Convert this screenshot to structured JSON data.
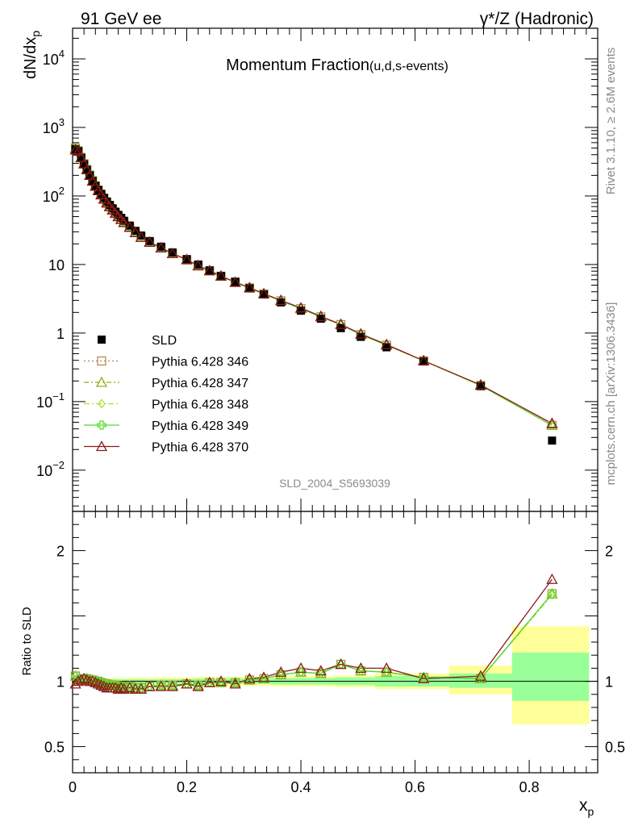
{
  "header": {
    "left": "91 GeV ee",
    "right": "γ*/Z (Hadronic)",
    "title_main": "Momentum Fraction",
    "title_sub": "(u,d,s-events)"
  },
  "side_text": {
    "rivet": "Rivet 3.1.10, ≥ 2.6M events",
    "mcplots": "mcplots.cern.ch [arXiv:1306.3436]"
  },
  "analysis_id": "SLD_2004_S5693039",
  "chart_data": [
    {
      "type": "scatter",
      "panel": "main",
      "ylabel": "dN/dx_p",
      "yscale": "log",
      "xlim": [
        0,
        0.92
      ],
      "ylim": [
        0.0025,
        28000
      ],
      "y_ticks": [
        {
          "v": 0.01,
          "base": "10",
          "exp": "−2"
        },
        {
          "v": 0.1,
          "base": "10",
          "exp": "−1"
        },
        {
          "v": 1,
          "base": "1",
          "exp": ""
        },
        {
          "v": 10,
          "base": "10",
          "exp": ""
        },
        {
          "v": 100,
          "base": "10",
          "exp": "2"
        },
        {
          "v": 1000,
          "base": "10",
          "exp": "3"
        },
        {
          "v": 10000,
          "base": "10",
          "exp": "4"
        }
      ],
      "x": [
        0.005,
        0.01,
        0.015,
        0.02,
        0.025,
        0.03,
        0.035,
        0.04,
        0.045,
        0.05,
        0.055,
        0.06,
        0.065,
        0.07,
        0.075,
        0.08,
        0.085,
        0.09,
        0.1,
        0.11,
        0.12,
        0.135,
        0.155,
        0.175,
        0.2,
        0.22,
        0.24,
        0.26,
        0.285,
        0.31,
        0.335,
        0.365,
        0.4,
        0.435,
        0.47,
        0.505,
        0.55,
        0.615,
        0.715,
        0.84
      ],
      "series": [
        {
          "name": "SLD",
          "marker": "square",
          "color": "#000000",
          "values": [
            480,
            450,
            360,
            290,
            240,
            200,
            165,
            140,
            122,
            107,
            94,
            83,
            74,
            66,
            59,
            53,
            48,
            43.5,
            37,
            31,
            26.5,
            22,
            18.2,
            15,
            12,
            10,
            8.2,
            6.8,
            5.6,
            4.5,
            3.65,
            2.8,
            2.12,
            1.62,
            1.18,
            0.88,
            0.62,
            0.385,
            0.168,
            0.027
          ]
        },
        {
          "name": "Pythia 6.428 346",
          "marker": "open-square",
          "color": "#b5834a",
          "dash": "2,3",
          "values": [
            500,
            455,
            365,
            295,
            244,
            201,
            167,
            141,
            122,
            106,
            92,
            81,
            72,
            64,
            57,
            51,
            46,
            41.5,
            35.5,
            29.5,
            25.2,
            21.2,
            17.6,
            14.5,
            11.7,
            9.7,
            8.1,
            6.75,
            5.55,
            4.55,
            3.72,
            2.95,
            2.27,
            1.72,
            1.33,
            0.95,
            0.665,
            0.395,
            0.172,
            0.045
          ]
        },
        {
          "name": "Pythia 6.428 347",
          "marker": "open-triangle",
          "color": "#9aaa18",
          "dash": "6,3,2,3",
          "values": [
            500,
            455,
            365,
            295,
            244,
            201,
            167,
            141,
            122,
            106,
            92,
            81,
            72,
            64,
            57,
            51,
            46,
            41.5,
            35.5,
            29.5,
            25.2,
            21.2,
            17.6,
            14.5,
            11.7,
            9.7,
            8.1,
            6.75,
            5.55,
            4.55,
            3.72,
            2.95,
            2.27,
            1.72,
            1.33,
            0.95,
            0.665,
            0.395,
            0.172,
            0.045
          ]
        },
        {
          "name": "Pythia 6.428 348",
          "marker": "open-diamond",
          "color": "#a8e030",
          "dash": "7,3,2,3",
          "values": [
            500,
            455,
            365,
            295,
            244,
            201,
            167,
            141,
            122,
            106,
            92,
            81,
            72,
            64,
            57,
            51,
            46,
            41.5,
            35.5,
            29.5,
            25.2,
            21.2,
            17.6,
            14.5,
            11.7,
            9.7,
            8.1,
            6.75,
            5.55,
            4.55,
            3.72,
            2.95,
            2.27,
            1.72,
            1.33,
            0.95,
            0.665,
            0.395,
            0.172,
            0.045
          ]
        },
        {
          "name": "Pythia 6.428 349",
          "marker": "cross",
          "color": "#50d830",
          "dash": "",
          "values": [
            500,
            455,
            365,
            295,
            244,
            201,
            167,
            141,
            122,
            106,
            92,
            81,
            72,
            64,
            57,
            51,
            46,
            41.5,
            35.5,
            29.5,
            25.2,
            21.2,
            17.6,
            14.5,
            11.7,
            9.7,
            8.1,
            6.75,
            5.55,
            4.55,
            3.72,
            2.95,
            2.27,
            1.72,
            1.33,
            0.95,
            0.665,
            0.395,
            0.172,
            0.045
          ]
        },
        {
          "name": "Pythia 6.428 370",
          "marker": "open-triangle",
          "color": "#8b1a1a",
          "dash": "",
          "values": [
            470,
            450,
            365,
            295,
            243,
            200,
            165,
            139,
            120,
            104,
            90,
            79,
            70,
            62.5,
            56,
            50,
            45.5,
            41,
            35,
            29.2,
            25,
            21.2,
            17.5,
            14.5,
            11.8,
            9.6,
            8.15,
            6.8,
            5.5,
            4.6,
            3.75,
            3,
            2.33,
            1.75,
            1.34,
            0.97,
            0.68,
            0.395,
            0.175,
            0.048
          ]
        }
      ]
    },
    {
      "type": "scatter",
      "panel": "ratio",
      "xlabel": "x_p",
      "ylabel": "Ratio to SLD",
      "xlim": [
        0,
        0.92
      ],
      "ylim": [
        0.3,
        2.3
      ],
      "x_ticks": [
        0,
        0.2,
        0.4,
        0.6,
        0.8
      ],
      "y_ticks": [
        0.5,
        1,
        2
      ],
      "bands": [
        {
          "x0": 0.0,
          "x1": 0.02,
          "stat_lo": 0.985,
          "stat_hi": 1.015,
          "syst_lo": 0.975,
          "syst_hi": 1.025
        },
        {
          "x0": 0.02,
          "x1": 0.09,
          "stat_lo": 0.985,
          "stat_hi": 1.015,
          "syst_lo": 0.975,
          "syst_hi": 1.025
        },
        {
          "x0": 0.09,
          "x1": 0.21,
          "stat_lo": 0.985,
          "stat_hi": 1.015,
          "syst_lo": 0.97,
          "syst_hi": 1.03
        },
        {
          "x0": 0.21,
          "x1": 0.35,
          "stat_lo": 0.98,
          "stat_hi": 1.02,
          "syst_lo": 0.965,
          "syst_hi": 1.035
        },
        {
          "x0": 0.35,
          "x1": 0.46,
          "stat_lo": 0.975,
          "stat_hi": 1.025,
          "syst_lo": 0.96,
          "syst_hi": 1.04
        },
        {
          "x0": 0.46,
          "x1": 0.53,
          "stat_lo": 0.97,
          "stat_hi": 1.03,
          "syst_lo": 0.955,
          "syst_hi": 1.045
        },
        {
          "x0": 0.53,
          "x1": 0.66,
          "stat_lo": 0.96,
          "stat_hi": 1.04,
          "syst_lo": 0.94,
          "syst_hi": 1.06
        },
        {
          "x0": 0.66,
          "x1": 0.77,
          "stat_lo": 0.95,
          "stat_hi": 1.06,
          "syst_lo": 0.9,
          "syst_hi": 1.12
        },
        {
          "x0": 0.77,
          "x1": 0.905,
          "stat_lo": 0.85,
          "stat_hi": 1.22,
          "syst_lo": 0.67,
          "syst_hi": 1.42
        }
      ],
      "series": [
        {
          "name": "Pythia 6.428 346",
          "values": [
            1.04,
            1.01,
            1.01,
            1.02,
            1.02,
            1.0,
            1.01,
            1.0,
            1.0,
            0.99,
            0.98,
            0.98,
            0.97,
            0.97,
            0.97,
            0.96,
            0.96,
            0.95,
            0.96,
            0.95,
            0.95,
            0.96,
            0.97,
            0.97,
            0.98,
            0.97,
            0.99,
            0.99,
            0.99,
            1.01,
            1.02,
            1.05,
            1.07,
            1.06,
            1.13,
            1.08,
            1.07,
            1.03,
            1.02,
            1.67
          ]
        },
        {
          "name": "Pythia 6.428 347",
          "values": [
            1.04,
            1.01,
            1.01,
            1.02,
            1.02,
            1.0,
            1.01,
            1.0,
            1.0,
            0.99,
            0.98,
            0.98,
            0.97,
            0.97,
            0.97,
            0.96,
            0.96,
            0.95,
            0.96,
            0.95,
            0.95,
            0.96,
            0.97,
            0.97,
            0.98,
            0.97,
            0.99,
            0.99,
            0.99,
            1.01,
            1.02,
            1.05,
            1.07,
            1.06,
            1.13,
            1.08,
            1.07,
            1.03,
            1.02,
            1.67
          ]
        },
        {
          "name": "Pythia 6.428 348",
          "values": [
            1.04,
            1.01,
            1.01,
            1.02,
            1.02,
            1.0,
            1.01,
            1.0,
            1.0,
            0.99,
            0.98,
            0.98,
            0.97,
            0.97,
            0.97,
            0.96,
            0.96,
            0.95,
            0.96,
            0.95,
            0.95,
            0.96,
            0.97,
            0.97,
            0.98,
            0.97,
            0.99,
            0.99,
            0.99,
            1.01,
            1.02,
            1.05,
            1.07,
            1.06,
            1.13,
            1.08,
            1.07,
            1.03,
            1.02,
            1.66
          ]
        },
        {
          "name": "Pythia 6.428 349",
          "values": [
            1.04,
            1.01,
            1.01,
            1.02,
            1.02,
            1.0,
            1.01,
            1.0,
            1.0,
            0.99,
            0.98,
            0.98,
            0.97,
            0.97,
            0.97,
            0.96,
            0.96,
            0.95,
            0.96,
            0.95,
            0.95,
            0.96,
            0.97,
            0.97,
            0.98,
            0.97,
            0.99,
            0.99,
            0.99,
            1.01,
            1.02,
            1.05,
            1.07,
            1.06,
            1.13,
            1.08,
            1.07,
            1.03,
            1.02,
            1.67
          ]
        },
        {
          "name": "Pythia 6.428 370",
          "values": [
            0.98,
            1.0,
            1.01,
            1.02,
            1.01,
            1.0,
            1.0,
            0.99,
            0.98,
            0.97,
            0.96,
            0.95,
            0.95,
            0.95,
            0.95,
            0.94,
            0.95,
            0.94,
            0.95,
            0.94,
            0.94,
            0.96,
            0.96,
            0.96,
            0.98,
            0.96,
            0.99,
            1.0,
            0.98,
            1.02,
            1.03,
            1.07,
            1.1,
            1.08,
            1.13,
            1.1,
            1.1,
            1.02,
            1.04,
            1.78
          ]
        }
      ]
    }
  ]
}
